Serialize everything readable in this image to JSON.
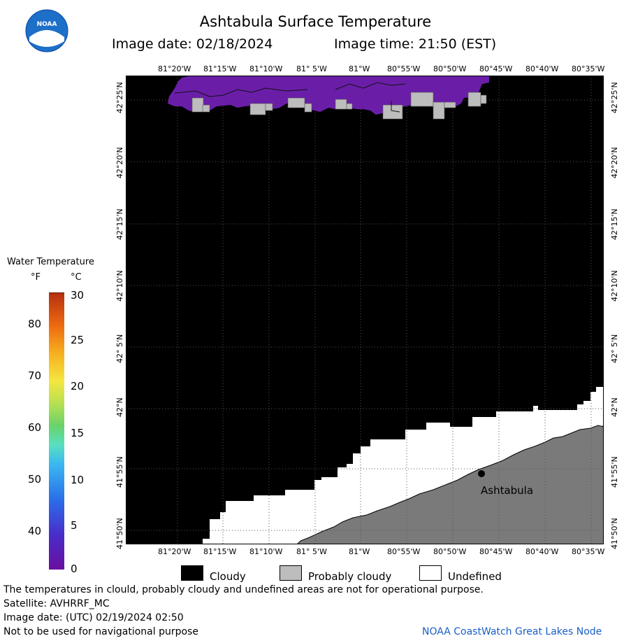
{
  "header": {
    "title": "Ashtabula Surface Temperature",
    "image_date": "Image date: 02/18/2024",
    "image_time": "Image time: 21:50 (EST)"
  },
  "logo": {
    "text": "NOAA"
  },
  "axes": {
    "lon_ticks": [
      "81°20'W",
      "81°15'W",
      "81°10'W",
      "81° 5'W",
      "81°W",
      "80°55'W",
      "80°50'W",
      "80°45'W",
      "80°40'W",
      "80°35'W"
    ],
    "lat_ticks": [
      "42°25'N",
      "42°20'N",
      "42°15'N",
      "42°10'N",
      "42° 5'N",
      "42°N",
      "41°55'N",
      "41°50'N"
    ]
  },
  "map": {
    "city_label": "Ashtabula"
  },
  "colorbar": {
    "title": "Water Temperature",
    "unit_f": "°F",
    "unit_c": "°C",
    "f_ticks": [
      "80",
      "70",
      "60",
      "50",
      "40"
    ],
    "c_ticks": [
      "30",
      "25",
      "20",
      "15",
      "10",
      "5",
      "0"
    ]
  },
  "legend": {
    "cloudy": "Cloudy",
    "probably_cloudy": "Probably cloudy",
    "undefined": "Undefined"
  },
  "footer": {
    "disclaimer": "The temperatures in clould, probably cloudy and undefined areas are not for operational purpose.",
    "satellite": "Satellite: AVHRRF_MC",
    "utc_date": "Image date: (UTC) 02/19/2024  02:50",
    "navigation": "Not to be used for navigational purpose",
    "credit": "NOAA CoastWatch Great Lakes Node"
  },
  "colors": {
    "cloudy": "#000000",
    "probably_cloudy": "#bdbdbd",
    "undefined": "#ffffff",
    "land": "#7a7a7a",
    "cold_water": "#6a1ea8"
  }
}
